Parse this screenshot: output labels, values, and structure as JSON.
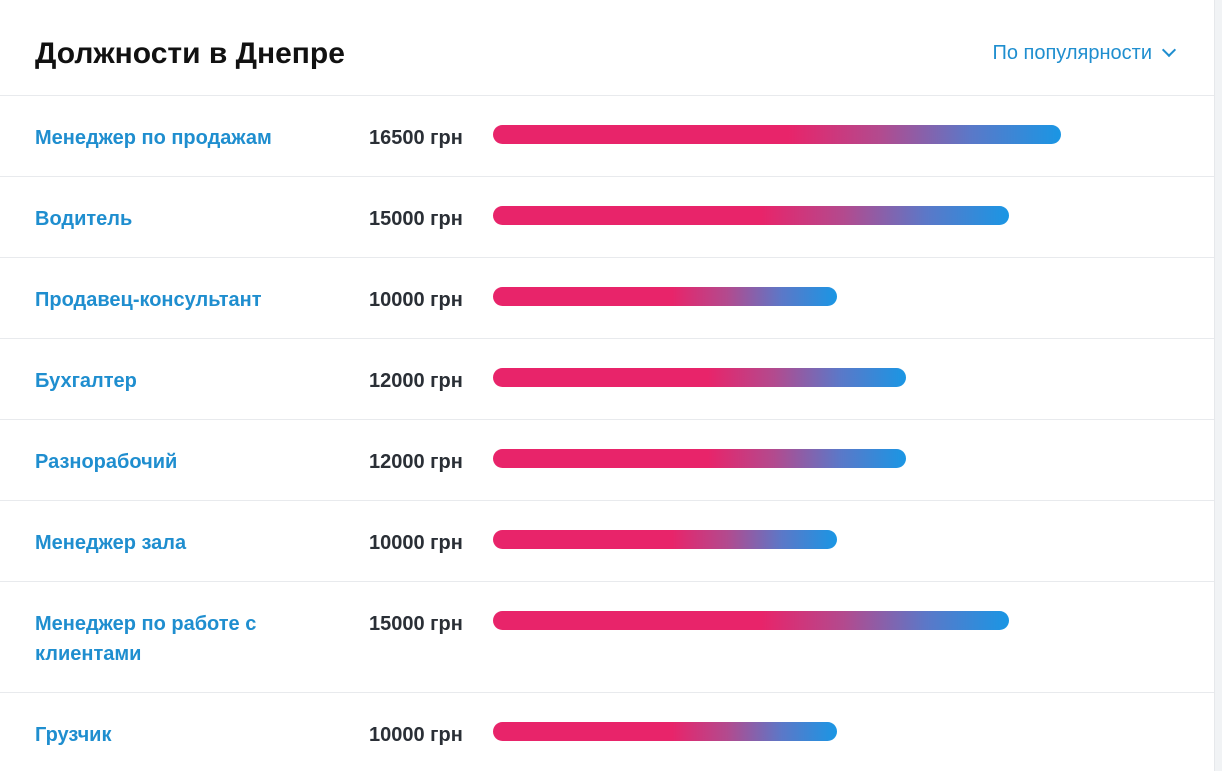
{
  "header": {
    "title": "Должности в Днепре",
    "sort_label": "По популярности"
  },
  "chart_data": {
    "type": "bar",
    "orientation": "horizontal",
    "title": "Должности в Днепре",
    "categories": [
      "Менеджер по продажам",
      "Водитель",
      "Продавец-консультант",
      "Бухгалтер",
      "Разнорабочий",
      "Менеджер зала",
      "Менеджер по работе с клиентами",
      "Грузчик"
    ],
    "values": [
      16500,
      15000,
      10000,
      12000,
      12000,
      10000,
      15000,
      10000
    ],
    "value_labels": [
      "16500 грн",
      "15000 грн",
      "10000 грн",
      "12000 грн",
      "12000 грн",
      "10000 грн",
      "15000 грн",
      "10000 грн"
    ],
    "unit": "грн",
    "grid": false,
    "bar_colors": {
      "start": "#e8246a",
      "end": "#1a96e4"
    }
  }
}
